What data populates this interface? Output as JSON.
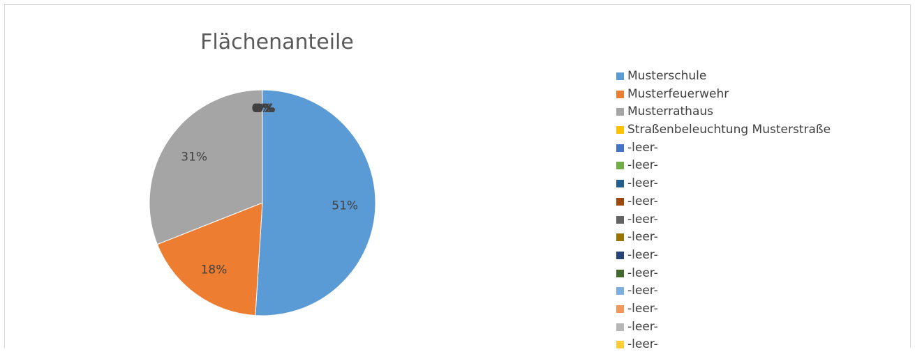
{
  "chart_data": {
    "type": "pie",
    "title": "Flächenanteile",
    "slices": [
      {
        "label": "Musterschule",
        "value": 51,
        "display": "51%",
        "color": "#5b9bd5"
      },
      {
        "label": "Musterfeuerwehr",
        "value": 18,
        "display": "18%",
        "color": "#ed7d31"
      },
      {
        "label": "Musterrathaus",
        "value": 31,
        "display": "31%",
        "color": "#a5a5a5"
      },
      {
        "label": "Straßenbeleuchtung Musterstraße",
        "value": 0,
        "display": "0%",
        "color": "#ffc000"
      }
    ],
    "overlapping_zero_labels": [
      "0%",
      "0%"
    ],
    "legend": [
      {
        "label": "Musterschule",
        "color": "#5b9bd5"
      },
      {
        "label": "Musterfeuerwehr",
        "color": "#ed7d31"
      },
      {
        "label": "Musterrathaus",
        "color": "#a5a5a5"
      },
      {
        "label": "Straßenbeleuchtung Musterstraße",
        "color": "#ffc000"
      },
      {
        "label": "-leer-",
        "color": "#4472c4"
      },
      {
        "label": "-leer-",
        "color": "#70ad47"
      },
      {
        "label": "-leer-",
        "color": "#255e91"
      },
      {
        "label": "-leer-",
        "color": "#9e480e"
      },
      {
        "label": "-leer-",
        "color": "#636363"
      },
      {
        "label": "-leer-",
        "color": "#997300"
      },
      {
        "label": "-leer-",
        "color": "#264478"
      },
      {
        "label": "-leer-",
        "color": "#43682b"
      },
      {
        "label": "-leer-",
        "color": "#7cafdd"
      },
      {
        "label": "-leer-",
        "color": "#f1975a"
      },
      {
        "label": "-leer-",
        "color": "#b7b7b7"
      },
      {
        "label": "-leer-",
        "color": "#ffcd33"
      }
    ],
    "legend_position": "right"
  }
}
